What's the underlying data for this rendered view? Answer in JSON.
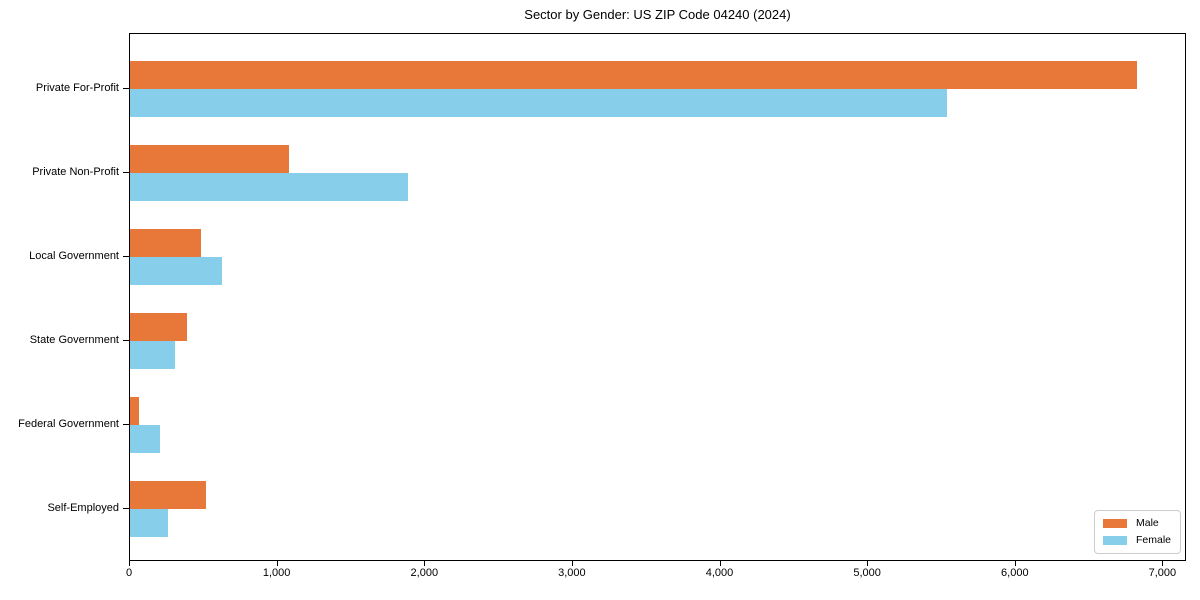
{
  "title": "Sector by Gender: US ZIP Code 04240 (2024)",
  "colors": {
    "male": "#e8783a",
    "female": "#87ceeb",
    "axis": "#000000",
    "legend_border": "#cccccc",
    "background": "#ffffff"
  },
  "legend": {
    "items": [
      {
        "label": "Male",
        "color": "#e8783a"
      },
      {
        "label": "Female",
        "color": "#87ceeb"
      }
    ],
    "position": "lower right"
  },
  "chart_data": {
    "type": "bar",
    "orientation": "horizontal",
    "title": "Sector by Gender: US ZIP Code 04240 (2024)",
    "xlabel": "",
    "ylabel": "",
    "categories": [
      "Private For-Profit",
      "Private Non-Profit",
      "Local Government",
      "State Government",
      "Federal Government",
      "Self-Employed"
    ],
    "series": [
      {
        "name": "Male",
        "color": "#e8783a",
        "values": [
          6818,
          1078,
          481,
          388,
          63,
          515
        ]
      },
      {
        "name": "Female",
        "color": "#87ceeb",
        "values": [
          5531,
          1883,
          626,
          305,
          203,
          260
        ]
      }
    ],
    "xlim": [
      0,
      7160
    ],
    "x_ticks": [
      0,
      1000,
      2000,
      3000,
      4000,
      5000,
      6000,
      7000
    ],
    "x_tick_labels": [
      "0",
      "1,000",
      "2,000",
      "3,000",
      "4,000",
      "5,000",
      "6,000",
      "7,000"
    ],
    "grid": false,
    "legend_position": "lower right"
  }
}
